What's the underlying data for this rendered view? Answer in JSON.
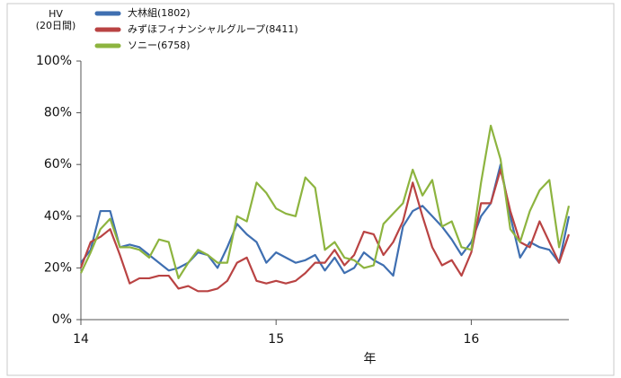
{
  "chart_data": {
    "type": "line",
    "y_label": [
      "HV",
      "(20日間)"
    ],
    "x_label": "年",
    "x": [
      14.0,
      14.05,
      14.1,
      14.15,
      14.2,
      14.25,
      14.3,
      14.35,
      14.4,
      14.45,
      14.5,
      14.55,
      14.6,
      14.65,
      14.7,
      14.75,
      14.8,
      14.85,
      14.9,
      14.95,
      15.0,
      15.05,
      15.1,
      15.15,
      15.2,
      15.25,
      15.3,
      15.35,
      15.4,
      15.45,
      15.5,
      15.55,
      15.6,
      15.65,
      15.7,
      15.75,
      15.8,
      15.85,
      15.9,
      15.95,
      16.0,
      16.05,
      16.1,
      16.15,
      16.2,
      16.25,
      16.3,
      16.35,
      16.4,
      16.45,
      16.5
    ],
    "series": [
      {
        "name": "大林組(1802)",
        "color": "#3f6fb1",
        "values": [
          22,
          27,
          42,
          42,
          28,
          29,
          28,
          25,
          22,
          19,
          20,
          22,
          26,
          25,
          20,
          28,
          37,
          33,
          30,
          22,
          26,
          24,
          22,
          23,
          25,
          19,
          24,
          18,
          20,
          26,
          23,
          21,
          17,
          36,
          42,
          44,
          40,
          36,
          31,
          25,
          30,
          40,
          45,
          60,
          40,
          24,
          30,
          28,
          27,
          22,
          40
        ]
      },
      {
        "name": "みずほフィナンシャルグループ(8411)",
        "color": "#b94343",
        "values": [
          20,
          30,
          32,
          35,
          25,
          14,
          16,
          16,
          17,
          17,
          12,
          13,
          11,
          11,
          12,
          15,
          22,
          24,
          15,
          14,
          15,
          14,
          15,
          18,
          22,
          22,
          27,
          21,
          25,
          34,
          33,
          25,
          30,
          38,
          53,
          40,
          28,
          21,
          23,
          17,
          26,
          45,
          45,
          58,
          42,
          30,
          28,
          38,
          30,
          22,
          33
        ]
      },
      {
        "name": "ソニー(6758)",
        "color": "#8db43f",
        "values": [
          18,
          26,
          35,
          39,
          28,
          28,
          27,
          24,
          31,
          30,
          16,
          22,
          27,
          25,
          22,
          22,
          40,
          38,
          53,
          49,
          43,
          41,
          40,
          55,
          51,
          27,
          30,
          24,
          23,
          20,
          21,
          37,
          41,
          45,
          58,
          48,
          54,
          36,
          38,
          28,
          27,
          53,
          75,
          62,
          35,
          30,
          42,
          50,
          54,
          28,
          44
        ]
      }
    ],
    "xlim": [
      14,
      16.5
    ],
    "xticks": [
      14,
      15,
      16
    ],
    "ylim": [
      0,
      100
    ],
    "yticks": [
      {
        "value": 0,
        "label": "0%"
      },
      {
        "value": 20,
        "label": "20%"
      },
      {
        "value": 40,
        "label": "40%"
      },
      {
        "value": 60,
        "label": "60%"
      },
      {
        "value": 80,
        "label": "80%"
      },
      {
        "value": 100,
        "label": "100%"
      }
    ],
    "legend": "top-left"
  }
}
